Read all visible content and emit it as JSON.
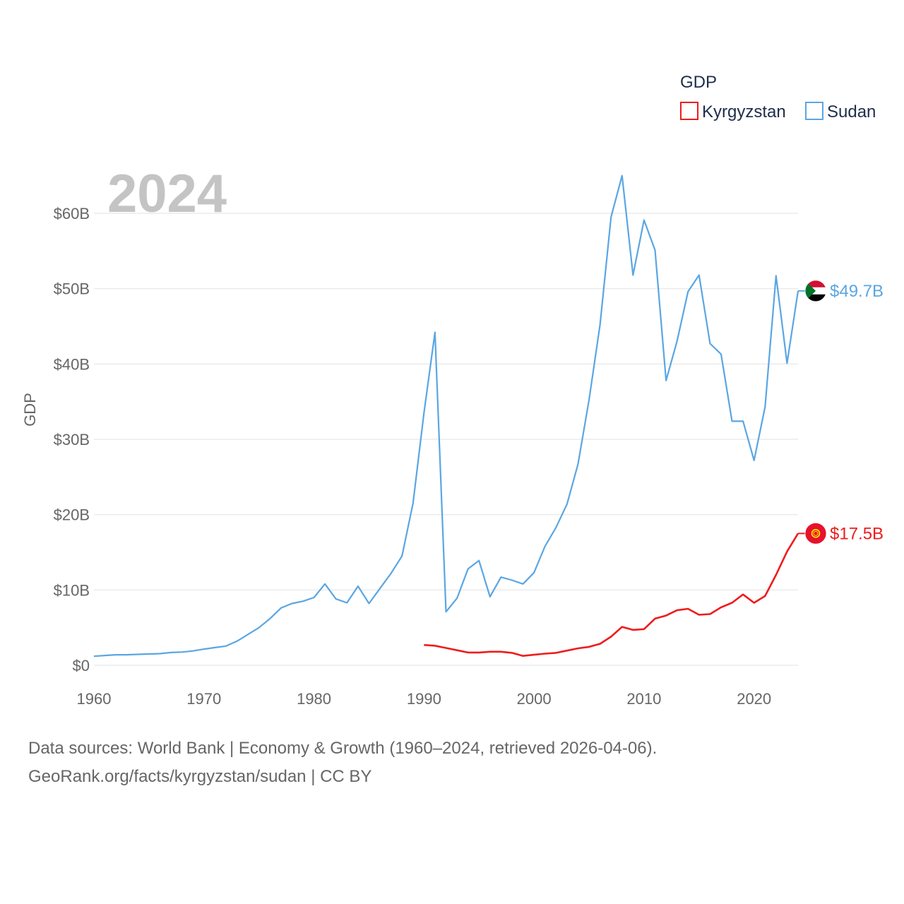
{
  "chart_data": {
    "type": "line",
    "year_label": "2024",
    "ylabel": "GDP",
    "xlim": [
      1960,
      2024
    ],
    "ylim": [
      0,
      65
    ],
    "y_ticks": [
      0,
      10,
      20,
      30,
      40,
      50,
      60
    ],
    "y_tick_labels": [
      "$0",
      "$10B",
      "$20B",
      "$30B",
      "$40B",
      "$50B",
      "$60B"
    ],
    "x_ticks": [
      1960,
      1970,
      1980,
      1990,
      2000,
      2010,
      2020
    ],
    "x_tick_labels": [
      "1960",
      "1970",
      "1980",
      "1990",
      "2000",
      "2010",
      "2020"
    ],
    "grid": true,
    "legend": {
      "title": "GDP",
      "position": "top-right",
      "entries": [
        "Kyrgyzstan",
        "Sudan"
      ]
    },
    "series": [
      {
        "name": "Sudan",
        "color": "#5aa6e3",
        "flag": "sudan-flag-icon",
        "end_label": "$49.7B",
        "x": [
          1960,
          1961,
          1962,
          1963,
          1964,
          1965,
          1966,
          1967,
          1968,
          1969,
          1970,
          1971,
          1972,
          1973,
          1974,
          1975,
          1976,
          1977,
          1978,
          1979,
          1980,
          1981,
          1982,
          1983,
          1984,
          1985,
          1986,
          1987,
          1988,
          1989,
          1990,
          1991,
          1992,
          1993,
          1994,
          1995,
          1996,
          1997,
          1998,
          1999,
          2000,
          2001,
          2002,
          2003,
          2004,
          2005,
          2006,
          2007,
          2008,
          2009,
          2010,
          2011,
          2012,
          2013,
          2014,
          2015,
          2016,
          2017,
          2018,
          2019,
          2020,
          2021,
          2022,
          2023,
          2024
        ],
        "values": [
          1.2,
          1.3,
          1.4,
          1.4,
          1.45,
          1.5,
          1.55,
          1.7,
          1.75,
          1.9,
          2.15,
          2.35,
          2.55,
          3.2,
          4.1,
          5.0,
          6.2,
          7.6,
          8.2,
          8.5,
          9.0,
          10.8,
          8.8,
          8.3,
          10.5,
          8.2,
          10.2,
          12.2,
          14.5,
          21.5,
          33.5,
          44.2,
          7.1,
          8.9,
          12.8,
          13.9,
          9.1,
          11.7,
          11.3,
          10.8,
          12.3,
          15.8,
          18.3,
          21.4,
          26.7,
          35.2,
          45.2,
          59.5,
          65.0,
          51.8,
          59.1,
          55.1,
          37.8,
          43.0,
          49.6,
          51.8,
          42.7,
          41.3,
          32.4,
          32.4,
          27.2,
          34.3,
          51.7,
          40.1,
          49.7
        ]
      },
      {
        "name": "Kyrgyzstan",
        "color": "#ee1c1c",
        "flag": "kyrgyzstan-flag-icon",
        "end_label": "$17.5B",
        "x": [
          1990,
          1991,
          1992,
          1993,
          1994,
          1995,
          1996,
          1997,
          1998,
          1999,
          2000,
          2001,
          2002,
          2003,
          2004,
          2005,
          2006,
          2007,
          2008,
          2009,
          2010,
          2011,
          2012,
          2013,
          2014,
          2015,
          2016,
          2017,
          2018,
          2019,
          2020,
          2021,
          2022,
          2023,
          2024
        ],
        "values": [
          2.7,
          2.6,
          2.3,
          2.0,
          1.7,
          1.7,
          1.8,
          1.8,
          1.65,
          1.25,
          1.4,
          1.55,
          1.65,
          1.95,
          2.25,
          2.45,
          2.85,
          3.8,
          5.1,
          4.7,
          4.8,
          6.2,
          6.6,
          7.3,
          7.5,
          6.7,
          6.8,
          7.7,
          8.3,
          9.4,
          8.3,
          9.2,
          12.0,
          15.1,
          17.5
        ]
      }
    ]
  },
  "footer": {
    "source_line": "Data sources: World Bank | Economy & Growth (1960–2024, retrieved 2026-04-06).",
    "url_line": "GeoRank.org/facts/kyrgyzstan/sudan | CC BY"
  }
}
